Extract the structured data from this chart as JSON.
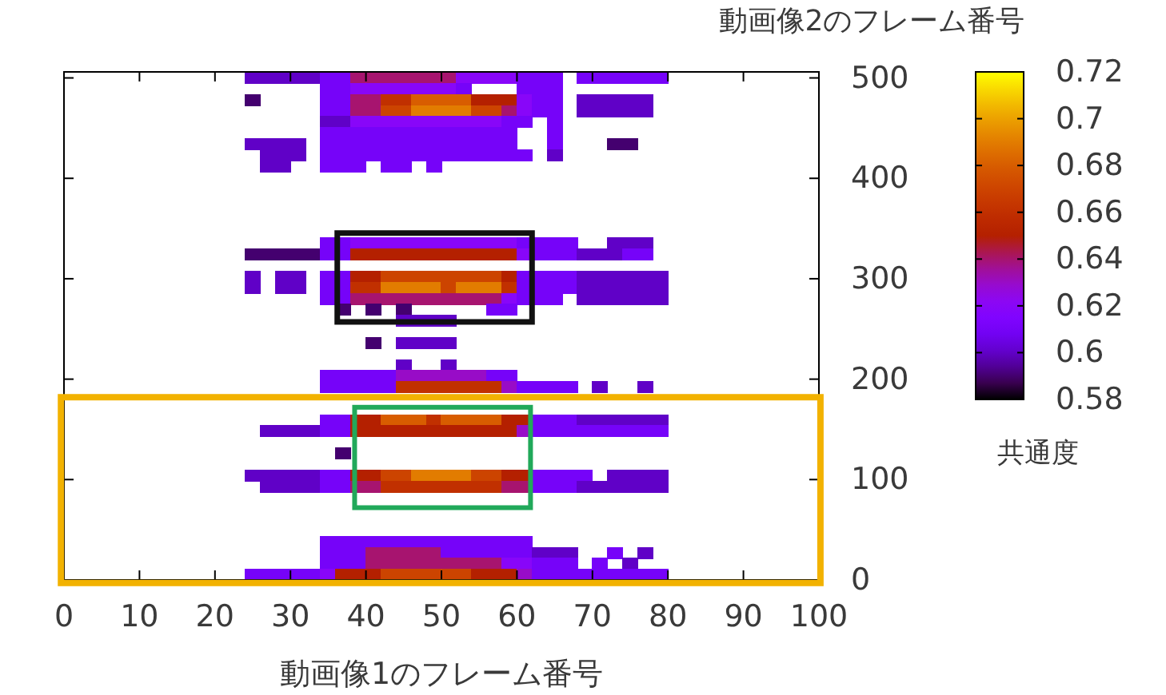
{
  "chart_data": {
    "type": "scatter",
    "marker": "square",
    "xlabel": "動画像1のフレーム番号",
    "ylabel": "動画像2のフレーム番号",
    "clabel": "共通度",
    "xlim": [
      0,
      100
    ],
    "xticks": [
      0,
      10,
      20,
      30,
      40,
      50,
      60,
      70,
      80,
      90,
      100
    ],
    "ylim": [
      0,
      506
    ],
    "yticks": [
      0,
      100,
      200,
      300,
      400,
      500
    ],
    "clim": [
      0.58,
      0.72
    ],
    "cticks": [
      0.58,
      0.6,
      0.62,
      0.64,
      0.66,
      0.68,
      0.7,
      0.72
    ],
    "series": [
      {
        "x": [
          25,
          27,
          29,
          31,
          33,
          35,
          37,
          39,
          41,
          43,
          45,
          47,
          49,
          51,
          53,
          55,
          57,
          59,
          61,
          63,
          65,
          69,
          71,
          73,
          75,
          77,
          79
        ],
        "values": [
          500,
          500,
          500,
          500,
          500,
          500,
          500,
          500,
          500,
          500,
          500,
          500,
          500,
          500,
          500,
          500,
          500,
          500,
          500,
          500,
          500,
          500,
          500,
          500,
          500,
          500,
          500
        ],
        "cvalues": [
          0.6,
          0.6,
          0.6,
          0.6,
          0.6,
          0.61,
          0.61,
          0.64,
          0.64,
          0.64,
          0.64,
          0.64,
          0.64,
          0.64,
          0.62,
          0.62,
          0.62,
          0.62,
          0.61,
          0.61,
          0.61,
          0.61,
          0.61,
          0.61,
          0.61,
          0.61,
          0.61
        ],
        "colors": [
          "#6001c7",
          "#6001c7",
          "#6001c7",
          "#6001c7",
          "#6001c7",
          "#7603f9",
          "#7603f9",
          "#a7146f",
          "#a7146f",
          "#a7146f",
          "#a7146f",
          "#a7146f",
          "#a7146f",
          "#a7146f",
          "#8806f9",
          "#8806f9",
          "#8806f9",
          "#8806f9",
          "#7603f9",
          "#7603f9",
          "#7603f9",
          "#7603f9",
          "#7603f9",
          "#7603f9",
          "#7603f9",
          "#7603f9",
          "#7603f9"
        ]
      },
      {
        "x": [
          35,
          37,
          39,
          41,
          43,
          45,
          47,
          49,
          51,
          53,
          61,
          63,
          65
        ],
        "values": [
          489,
          489,
          489,
          489,
          489,
          489,
          489,
          489,
          489,
          489,
          489,
          489,
          489
        ],
        "cvalues": [
          0.61,
          0.61,
          0.62,
          0.62,
          0.62,
          0.62,
          0.62,
          0.62,
          0.62,
          0.61,
          0.61,
          0.61,
          0.61
        ],
        "colors": [
          "#7603f9",
          "#7603f9",
          "#8806f9",
          "#8806f9",
          "#8806f9",
          "#8806f9",
          "#8806f9",
          "#8806f9",
          "#8806f9",
          "#7603f9",
          "#7603f9",
          "#7603f9",
          "#7603f9"
        ]
      },
      {
        "x": [
          25,
          35,
          37,
          39,
          41,
          43,
          45,
          47,
          49,
          51,
          53,
          55,
          57,
          59,
          61,
          63,
          65,
          69,
          71,
          73,
          75,
          77
        ],
        "values": [
          478,
          478,
          478,
          478,
          478,
          478,
          478,
          478,
          478,
          478,
          478,
          478,
          478,
          478,
          478,
          478,
          478,
          478,
          478,
          478,
          478,
          478
        ],
        "cvalues": [
          0.59,
          0.61,
          0.61,
          0.64,
          0.64,
          0.66,
          0.66,
          0.68,
          0.68,
          0.68,
          0.68,
          0.65,
          0.65,
          0.65,
          0.62,
          0.61,
          0.61,
          0.6,
          0.6,
          0.6,
          0.6,
          0.6
        ],
        "colors": [
          "#44006f",
          "#7603f9",
          "#7603f9",
          "#a7146f",
          "#a7146f",
          "#c13000",
          "#c13000",
          "#d85d00",
          "#d85d00",
          "#d85d00",
          "#d85d00",
          "#b42000",
          "#b42000",
          "#b42000",
          "#8806f9",
          "#7603f9",
          "#7603f9",
          "#6001c7",
          "#6001c7",
          "#6001c7",
          "#6001c7",
          "#6001c7"
        ]
      },
      {
        "x": [
          35,
          37,
          39,
          41,
          43,
          45,
          47,
          49,
          51,
          53,
          55,
          57,
          59,
          61,
          63,
          65,
          69,
          71,
          73,
          75,
          77
        ],
        "values": [
          467,
          467,
          467,
          467,
          467,
          467,
          467,
          467,
          467,
          467,
          467,
          467,
          467,
          467,
          467,
          467,
          467,
          467,
          467,
          467,
          467
        ],
        "cvalues": [
          0.61,
          0.61,
          0.64,
          0.64,
          0.67,
          0.67,
          0.69,
          0.69,
          0.69,
          0.69,
          0.67,
          0.67,
          0.64,
          0.62,
          0.61,
          0.61,
          0.6,
          0.6,
          0.6,
          0.6,
          0.6
        ],
        "colors": [
          "#7603f9",
          "#7603f9",
          "#a7146f",
          "#a7146f",
          "#cc4400",
          "#cc4400",
          "#e27c00",
          "#e27c00",
          "#e27c00",
          "#e27c00",
          "#cc4400",
          "#cc4400",
          "#a7146f",
          "#8806f9",
          "#7603f9",
          "#7603f9",
          "#6001c7",
          "#6001c7",
          "#6001c7",
          "#6001c7",
          "#6001c7"
        ]
      },
      {
        "x": [
          35,
          37,
          39,
          41,
          43,
          45,
          47,
          49,
          51,
          53,
          55,
          57,
          59,
          61,
          65
        ],
        "values": [
          456,
          456,
          456,
          456,
          456,
          456,
          456,
          456,
          456,
          456,
          456,
          456,
          456,
          456,
          456
        ],
        "cvalues": [
          0.6,
          0.6,
          0.62,
          0.62,
          0.62,
          0.62,
          0.62,
          0.62,
          0.62,
          0.62,
          0.62,
          0.62,
          0.61,
          0.61,
          0.61
        ],
        "colors": [
          "#6001c7",
          "#6001c7",
          "#8806f9",
          "#8806f9",
          "#8806f9",
          "#8806f9",
          "#8806f9",
          "#8806f9",
          "#8806f9",
          "#8806f9",
          "#8806f9",
          "#8806f9",
          "#7603f9",
          "#7603f9",
          "#7603f9"
        ]
      },
      {
        "x": [
          35,
          37,
          39,
          41,
          43,
          45,
          47,
          49,
          51,
          53,
          55,
          57,
          59,
          65
        ],
        "values": [
          445,
          445,
          445,
          445,
          445,
          445,
          445,
          445,
          445,
          445,
          445,
          445,
          445,
          445
        ],
        "cvalues": [
          0.61,
          0.61,
          0.61,
          0.61,
          0.61,
          0.61,
          0.61,
          0.61,
          0.61,
          0.61,
          0.61,
          0.61,
          0.61,
          0.61
        ],
        "colors": [
          "#7603f9",
          "#7603f9",
          "#7603f9",
          "#7603f9",
          "#7603f9",
          "#7603f9",
          "#7603f9",
          "#7603f9",
          "#7603f9",
          "#7603f9",
          "#7603f9",
          "#7603f9",
          "#7603f9",
          "#7603f9"
        ]
      },
      {
        "x": [
          25,
          27,
          29,
          31,
          35,
          37,
          39,
          41,
          43,
          45,
          47,
          49,
          51,
          53,
          55,
          57,
          59,
          65,
          73,
          75
        ],
        "values": [
          434,
          434,
          434,
          434,
          434,
          434,
          434,
          434,
          434,
          434,
          434,
          434,
          434,
          434,
          434,
          434,
          434,
          434,
          434,
          434
        ],
        "cvalues": [
          0.6,
          0.6,
          0.6,
          0.6,
          0.61,
          0.61,
          0.61,
          0.61,
          0.61,
          0.61,
          0.61,
          0.61,
          0.61,
          0.61,
          0.61,
          0.61,
          0.61,
          0.61,
          0.59,
          0.59
        ],
        "colors": [
          "#6001c7",
          "#6001c7",
          "#6001c7",
          "#6001c7",
          "#7603f9",
          "#7603f9",
          "#7603f9",
          "#7603f9",
          "#7603f9",
          "#7603f9",
          "#7603f9",
          "#7603f9",
          "#7603f9",
          "#7603f9",
          "#7603f9",
          "#7603f9",
          "#7603f9",
          "#7603f9",
          "#44006f",
          "#44006f"
        ]
      },
      {
        "x": [
          27,
          29,
          31,
          35,
          37,
          39,
          41,
          43,
          45,
          47,
          49,
          51,
          53,
          55,
          57,
          59,
          61,
          65
        ],
        "values": [
          423,
          423,
          423,
          423,
          423,
          423,
          423,
          423,
          423,
          423,
          423,
          423,
          423,
          423,
          423,
          423,
          423,
          423
        ],
        "cvalues": [
          0.6,
          0.6,
          0.6,
          0.61,
          0.61,
          0.61,
          0.61,
          0.61,
          0.61,
          0.61,
          0.61,
          0.61,
          0.61,
          0.61,
          0.61,
          0.61,
          0.61,
          0.6
        ],
        "colors": [
          "#6001c7",
          "#6001c7",
          "#6001c7",
          "#7603f9",
          "#7603f9",
          "#7603f9",
          "#7603f9",
          "#7603f9",
          "#7603f9",
          "#7603f9",
          "#7603f9",
          "#7603f9",
          "#7603f9",
          "#7603f9",
          "#7603f9",
          "#7603f9",
          "#7603f9",
          "#6001c7"
        ]
      },
      {
        "x": [
          27,
          29,
          35,
          37,
          39,
          43,
          45,
          49
        ],
        "values": [
          412,
          412,
          412,
          412,
          412,
          412,
          412,
          412
        ],
        "cvalues": [
          0.6,
          0.6,
          0.61,
          0.61,
          0.61,
          0.61,
          0.61,
          0.61
        ],
        "colors": [
          "#6001c7",
          "#6001c7",
          "#7603f9",
          "#7603f9",
          "#7603f9",
          "#7603f9",
          "#7603f9",
          "#7603f9"
        ]
      },
      {
        "x": [
          35,
          37,
          39,
          41,
          43,
          45,
          47,
          49,
          51,
          53,
          55,
          57,
          59,
          61,
          63,
          65,
          67,
          73,
          75,
          77
        ],
        "values": [
          335,
          335,
          335,
          335,
          335,
          335,
          335,
          335,
          335,
          335,
          335,
          335,
          335,
          335,
          335,
          335,
          335,
          335,
          335,
          335
        ],
        "cvalues": [
          0.61,
          0.61,
          0.62,
          0.62,
          0.62,
          0.62,
          0.62,
          0.62,
          0.62,
          0.62,
          0.62,
          0.62,
          0.62,
          0.61,
          0.61,
          0.61,
          0.61,
          0.6,
          0.6,
          0.6
        ],
        "colors": [
          "#7603f9",
          "#7603f9",
          "#8806f9",
          "#8806f9",
          "#8806f9",
          "#8806f9",
          "#8806f9",
          "#8806f9",
          "#8806f9",
          "#8806f9",
          "#8806f9",
          "#8806f9",
          "#8806f9",
          "#7603f9",
          "#7603f9",
          "#7603f9",
          "#7603f9",
          "#6001c7",
          "#6001c7",
          "#6001c7"
        ]
      },
      {
        "x": [
          25,
          27,
          29,
          31,
          33,
          35,
          37,
          39,
          41,
          43,
          45,
          47,
          49,
          51,
          53,
          55,
          57,
          59,
          61,
          63,
          65,
          67,
          69,
          71,
          73,
          75,
          77
        ],
        "values": [
          324,
          324,
          324,
          324,
          324,
          324,
          324,
          324,
          324,
          324,
          324,
          324,
          324,
          324,
          324,
          324,
          324,
          324,
          324,
          324,
          324,
          324,
          324,
          324,
          324,
          324,
          324
        ],
        "cvalues": [
          0.59,
          0.59,
          0.59,
          0.59,
          0.59,
          0.61,
          0.61,
          0.65,
          0.65,
          0.65,
          0.65,
          0.65,
          0.65,
          0.65,
          0.65,
          0.65,
          0.65,
          0.65,
          0.62,
          0.61,
          0.61,
          0.61,
          0.6,
          0.6,
          0.6,
          0.61,
          0.61
        ],
        "colors": [
          "#44006f",
          "#44006f",
          "#44006f",
          "#44006f",
          "#44006f",
          "#7603f9",
          "#7603f9",
          "#b42000",
          "#b42000",
          "#b42000",
          "#b42000",
          "#b42000",
          "#b42000",
          "#b42000",
          "#b42000",
          "#b42000",
          "#b42000",
          "#b42000",
          "#8806f9",
          "#7603f9",
          "#7603f9",
          "#7603f9",
          "#6001c7",
          "#6001c7",
          "#6001c7",
          "#7603f9",
          "#7603f9"
        ]
      },
      {
        "x": [
          25,
          29,
          31,
          35,
          37,
          39,
          41,
          43,
          45,
          47,
          49,
          51,
          53,
          55,
          57,
          59,
          61,
          63,
          65,
          67,
          69,
          71,
          73,
          75,
          77,
          79
        ],
        "values": [
          302,
          302,
          302,
          302,
          302,
          302,
          302,
          302,
          302,
          302,
          302,
          302,
          302,
          302,
          302,
          302,
          302,
          302,
          302,
          302,
          302,
          302,
          302,
          302,
          302,
          302
        ],
        "cvalues": [
          0.6,
          0.6,
          0.6,
          0.61,
          0.61,
          0.65,
          0.65,
          0.67,
          0.67,
          0.67,
          0.67,
          0.67,
          0.67,
          0.67,
          0.67,
          0.65,
          0.61,
          0.61,
          0.61,
          0.61,
          0.6,
          0.6,
          0.6,
          0.6,
          0.6,
          0.6
        ],
        "colors": [
          "#6001c7",
          "#6001c7",
          "#6001c7",
          "#7603f9",
          "#7603f9",
          "#b42000",
          "#b42000",
          "#cc4400",
          "#cc4400",
          "#cc4400",
          "#cc4400",
          "#cc4400",
          "#cc4400",
          "#cc4400",
          "#cc4400",
          "#b42000",
          "#7603f9",
          "#7603f9",
          "#7603f9",
          "#7603f9",
          "#6001c7",
          "#6001c7",
          "#6001c7",
          "#6001c7",
          "#6001c7",
          "#6001c7"
        ]
      },
      {
        "x": [
          25,
          29,
          31,
          35,
          37,
          39,
          41,
          43,
          45,
          47,
          49,
          51,
          53,
          55,
          57,
          59,
          61,
          63,
          65,
          67,
          69,
          71,
          73,
          75,
          77,
          79
        ],
        "values": [
          291,
          291,
          291,
          291,
          291,
          291,
          291,
          291,
          291,
          291,
          291,
          291,
          291,
          291,
          291,
          291,
          291,
          291,
          291,
          291,
          291,
          291,
          291,
          291,
          291,
          291
        ],
        "cvalues": [
          0.6,
          0.6,
          0.6,
          0.61,
          0.61,
          0.66,
          0.66,
          0.69,
          0.69,
          0.69,
          0.69,
          0.67,
          0.69,
          0.69,
          0.69,
          0.66,
          0.61,
          0.61,
          0.61,
          0.61,
          0.6,
          0.6,
          0.6,
          0.6,
          0.6,
          0.6
        ],
        "colors": [
          "#6001c7",
          "#6001c7",
          "#6001c7",
          "#7603f9",
          "#7603f9",
          "#c13000",
          "#c13000",
          "#e27c00",
          "#e27c00",
          "#e27c00",
          "#e27c00",
          "#cc4400",
          "#e27c00",
          "#e27c00",
          "#e27c00",
          "#c13000",
          "#7603f9",
          "#7603f9",
          "#7603f9",
          "#7603f9",
          "#6001c7",
          "#6001c7",
          "#6001c7",
          "#6001c7",
          "#6001c7",
          "#6001c7"
        ]
      },
      {
        "x": [
          35,
          37,
          39,
          41,
          43,
          45,
          47,
          49,
          51,
          53,
          55,
          57,
          59,
          61,
          63,
          65,
          69,
          71,
          73,
          75,
          77,
          79
        ],
        "values": [
          280,
          280,
          280,
          280,
          280,
          280,
          280,
          280,
          280,
          280,
          280,
          280,
          280,
          280,
          280,
          280,
          280,
          280,
          280,
          280,
          280,
          280
        ],
        "cvalues": [
          0.61,
          0.61,
          0.64,
          0.64,
          0.64,
          0.64,
          0.64,
          0.64,
          0.64,
          0.64,
          0.64,
          0.64,
          0.62,
          0.61,
          0.61,
          0.61,
          0.6,
          0.6,
          0.6,
          0.6,
          0.6,
          0.6
        ],
        "colors": [
          "#7603f9",
          "#7603f9",
          "#a7146f",
          "#a7146f",
          "#a7146f",
          "#a7146f",
          "#a7146f",
          "#a7146f",
          "#a7146f",
          "#a7146f",
          "#a7146f",
          "#a7146f",
          "#8806f9",
          "#7603f9",
          "#7603f9",
          "#7603f9",
          "#6001c7",
          "#6001c7",
          "#6001c7",
          "#6001c7",
          "#6001c7",
          "#6001c7"
        ]
      },
      {
        "x": [
          37,
          41,
          45,
          57,
          59
        ],
        "values": [
          269,
          269,
          269,
          269,
          269
        ],
        "cvalues": [
          0.59,
          0.59,
          0.59,
          0.61,
          0.61
        ],
        "colors": [
          "#44006f",
          "#44006f",
          "#44006f",
          "#7603f9",
          "#7603f9"
        ]
      },
      {
        "x": [
          45,
          47,
          49,
          51
        ],
        "values": [
          258,
          258,
          258,
          258
        ],
        "cvalues": [
          0.6,
          0.6,
          0.6,
          0.6
        ],
        "colors": [
          "#6001c7",
          "#6001c7",
          "#6001c7",
          "#6001c7"
        ]
      },
      {
        "x": [
          41,
          45,
          47,
          49,
          51
        ],
        "values": [
          236,
          236,
          236,
          236,
          236
        ],
        "cvalues": [
          0.59,
          0.6,
          0.6,
          0.6,
          0.6
        ],
        "colors": [
          "#44006f",
          "#6001c7",
          "#6001c7",
          "#6001c7",
          "#6001c7"
        ]
      },
      {
        "x": [
          45,
          51
        ],
        "values": [
          214,
          214
        ],
        "cvalues": [
          0.6,
          0.6
        ],
        "colors": [
          "#6001c7",
          "#6001c7"
        ]
      },
      {
        "x": [
          35,
          37,
          39,
          41,
          43,
          45,
          47,
          49,
          51,
          53,
          55,
          57,
          59
        ],
        "values": [
          203,
          203,
          203,
          203,
          203,
          203,
          203,
          203,
          203,
          203,
          203,
          203,
          203
        ],
        "cvalues": [
          0.61,
          0.61,
          0.61,
          0.61,
          0.61,
          0.63,
          0.63,
          0.63,
          0.63,
          0.63,
          0.63,
          0.61,
          0.61
        ],
        "colors": [
          "#7603f9",
          "#7603f9",
          "#7603f9",
          "#7603f9",
          "#7603f9",
          "#980cc7",
          "#980cc7",
          "#980cc7",
          "#980cc7",
          "#980cc7",
          "#980cc7",
          "#7603f9",
          "#7603f9"
        ]
      },
      {
        "x": [
          35,
          37,
          39,
          41,
          43,
          45,
          47,
          49,
          51,
          53,
          55,
          57,
          59,
          61,
          63,
          65,
          67,
          71,
          77
        ],
        "values": [
          192,
          192,
          192,
          192,
          192,
          192,
          192,
          192,
          192,
          192,
          192,
          192,
          192,
          192,
          192,
          192,
          192,
          192,
          192
        ],
        "cvalues": [
          0.61,
          0.61,
          0.61,
          0.61,
          0.61,
          0.66,
          0.66,
          0.66,
          0.66,
          0.66,
          0.66,
          0.66,
          0.63,
          0.61,
          0.61,
          0.61,
          0.61,
          0.6,
          0.6
        ],
        "colors": [
          "#7603f9",
          "#7603f9",
          "#7603f9",
          "#7603f9",
          "#7603f9",
          "#c13000",
          "#c13000",
          "#c13000",
          "#c13000",
          "#c13000",
          "#c13000",
          "#c13000",
          "#980cc7",
          "#7603f9",
          "#7603f9",
          "#7603f9",
          "#7603f9",
          "#6001c7",
          "#6001c7"
        ]
      },
      {
        "x": [
          35,
          37,
          39,
          41,
          43,
          45,
          47,
          49,
          51,
          53,
          55,
          57,
          59,
          61,
          63,
          65,
          67,
          69,
          71,
          73,
          75,
          77,
          79
        ],
        "values": [
          159,
          159,
          159,
          159,
          159,
          159,
          159,
          159,
          159,
          159,
          159,
          159,
          159,
          159,
          159,
          159,
          159,
          159,
          159,
          159,
          159,
          159,
          159
        ],
        "cvalues": [
          0.61,
          0.61,
          0.65,
          0.65,
          0.68,
          0.68,
          0.68,
          0.66,
          0.68,
          0.68,
          0.68,
          0.68,
          0.65,
          0.65,
          0.61,
          0.61,
          0.61,
          0.6,
          0.6,
          0.6,
          0.6,
          0.6,
          0.6
        ],
        "colors": [
          "#7603f9",
          "#7603f9",
          "#b42000",
          "#b42000",
          "#d85d00",
          "#d85d00",
          "#d85d00",
          "#c13000",
          "#d85d00",
          "#d85d00",
          "#d85d00",
          "#d85d00",
          "#b42000",
          "#b42000",
          "#7603f9",
          "#7603f9",
          "#7603f9",
          "#6001c7",
          "#6001c7",
          "#6001c7",
          "#6001c7",
          "#6001c7",
          "#6001c7"
        ]
      },
      {
        "x": [
          27,
          29,
          31,
          33,
          35,
          37,
          39,
          41,
          43,
          45,
          47,
          49,
          51,
          53,
          55,
          57,
          59,
          61,
          63,
          65,
          67,
          69,
          71,
          73,
          75,
          77,
          79
        ],
        "values": [
          148,
          148,
          148,
          148,
          148,
          148,
          148,
          148,
          148,
          148,
          148,
          148,
          148,
          148,
          148,
          148,
          148,
          148,
          148,
          148,
          148,
          148,
          148,
          148,
          148,
          148,
          148
        ],
        "cvalues": [
          0.6,
          0.6,
          0.6,
          0.6,
          0.61,
          0.61,
          0.65,
          0.65,
          0.65,
          0.65,
          0.65,
          0.65,
          0.65,
          0.65,
          0.65,
          0.65,
          0.65,
          0.63,
          0.61,
          0.61,
          0.61,
          0.61,
          0.61,
          0.61,
          0.61,
          0.61,
          0.61
        ],
        "colors": [
          "#6001c7",
          "#6001c7",
          "#6001c7",
          "#6001c7",
          "#7603f9",
          "#7603f9",
          "#b42000",
          "#b42000",
          "#b42000",
          "#b42000",
          "#b42000",
          "#b42000",
          "#b42000",
          "#b42000",
          "#b42000",
          "#b42000",
          "#b42000",
          "#980cc7",
          "#7603f9",
          "#7603f9",
          "#7603f9",
          "#7603f9",
          "#7603f9",
          "#7603f9",
          "#7603f9",
          "#7603f9",
          "#7603f9"
        ]
      },
      {
        "x": [
          37
        ],
        "values": [
          126
        ],
        "cvalues": [
          0.59
        ],
        "colors": [
          "#44006f"
        ]
      },
      {
        "x": [
          25,
          27,
          29,
          31,
          33,
          35,
          37,
          39,
          41,
          43,
          45,
          47,
          49,
          51,
          53,
          55,
          57,
          59,
          61,
          63,
          65,
          67,
          69,
          73,
          75,
          77,
          79
        ],
        "values": [
          104,
          104,
          104,
          104,
          104,
          104,
          104,
          104,
          104,
          104,
          104,
          104,
          104,
          104,
          104,
          104,
          104,
          104,
          104,
          104,
          104,
          104,
          104,
          104,
          104,
          104,
          104
        ],
        "cvalues": [
          0.6,
          0.6,
          0.6,
          0.6,
          0.6,
          0.61,
          0.61,
          0.65,
          0.65,
          0.67,
          0.67,
          0.69,
          0.69,
          0.69,
          0.69,
          0.67,
          0.67,
          0.65,
          0.65,
          0.61,
          0.61,
          0.61,
          0.61,
          0.6,
          0.6,
          0.6,
          0.6
        ],
        "colors": [
          "#6001c7",
          "#6001c7",
          "#6001c7",
          "#6001c7",
          "#6001c7",
          "#7603f9",
          "#7603f9",
          "#b42000",
          "#b42000",
          "#cc4400",
          "#cc4400",
          "#e27c00",
          "#e27c00",
          "#e27c00",
          "#e27c00",
          "#cc4400",
          "#cc4400",
          "#b42000",
          "#b42000",
          "#7603f9",
          "#7603f9",
          "#7603f9",
          "#7603f9",
          "#6001c7",
          "#6001c7",
          "#6001c7",
          "#6001c7"
        ]
      },
      {
        "x": [
          27,
          29,
          31,
          33,
          35,
          37,
          39,
          41,
          43,
          45,
          47,
          49,
          51,
          53,
          55,
          57,
          59,
          61,
          63,
          65,
          67,
          69,
          71,
          73,
          75,
          77,
          79
        ],
        "values": [
          93,
          93,
          93,
          93,
          93,
          93,
          93,
          93,
          93,
          93,
          93,
          93,
          93,
          93,
          93,
          93,
          93,
          93,
          93,
          93,
          93,
          93,
          93,
          93,
          93,
          93,
          93
        ],
        "cvalues": [
          0.6,
          0.6,
          0.6,
          0.6,
          0.61,
          0.61,
          0.64,
          0.64,
          0.66,
          0.66,
          0.66,
          0.66,
          0.66,
          0.66,
          0.66,
          0.66,
          0.64,
          0.64,
          0.61,
          0.61,
          0.61,
          0.6,
          0.6,
          0.6,
          0.6,
          0.6,
          0.6
        ],
        "colors": [
          "#6001c7",
          "#6001c7",
          "#6001c7",
          "#6001c7",
          "#7603f9",
          "#7603f9",
          "#a7146f",
          "#a7146f",
          "#c13000",
          "#c13000",
          "#c13000",
          "#c13000",
          "#c13000",
          "#c13000",
          "#c13000",
          "#c13000",
          "#a7146f",
          "#a7146f",
          "#7603f9",
          "#7603f9",
          "#7603f9",
          "#6001c7",
          "#6001c7",
          "#6001c7",
          "#6001c7",
          "#6001c7",
          "#6001c7"
        ]
      },
      {
        "x": [
          35,
          37,
          39,
          41,
          43,
          45,
          47,
          49,
          51,
          53,
          55,
          57,
          59,
          61
        ],
        "values": [
          38,
          38,
          38,
          38,
          38,
          38,
          38,
          38,
          38,
          38,
          38,
          38,
          38,
          38
        ],
        "cvalues": [
          0.61,
          0.61,
          0.61,
          0.61,
          0.61,
          0.61,
          0.61,
          0.61,
          0.61,
          0.61,
          0.61,
          0.61,
          0.61,
          0.61
        ],
        "colors": [
          "#7603f9",
          "#7603f9",
          "#7603f9",
          "#7603f9",
          "#7603f9",
          "#7603f9",
          "#7603f9",
          "#7603f9",
          "#7603f9",
          "#7603f9",
          "#7603f9",
          "#7603f9",
          "#7603f9",
          "#7603f9"
        ]
      },
      {
        "x": [
          35,
          37,
          39,
          41,
          43,
          45,
          47,
          49,
          51,
          53,
          55,
          57,
          59,
          61,
          63,
          65,
          67,
          73,
          77
        ],
        "values": [
          27,
          27,
          27,
          27,
          27,
          27,
          27,
          27,
          27,
          27,
          27,
          27,
          27,
          27,
          27,
          27,
          27,
          27,
          27
        ],
        "cvalues": [
          0.61,
          0.61,
          0.61,
          0.64,
          0.64,
          0.64,
          0.64,
          0.64,
          0.61,
          0.61,
          0.61,
          0.61,
          0.61,
          0.61,
          0.6,
          0.6,
          0.6,
          0.61,
          0.6
        ],
        "colors": [
          "#7603f9",
          "#7603f9",
          "#7603f9",
          "#a7146f",
          "#a7146f",
          "#a7146f",
          "#a7146f",
          "#a7146f",
          "#7603f9",
          "#7603f9",
          "#7603f9",
          "#7603f9",
          "#7603f9",
          "#7603f9",
          "#6001c7",
          "#6001c7",
          "#6001c7",
          "#7603f9",
          "#6001c7"
        ]
      },
      {
        "x": [
          35,
          37,
          39,
          41,
          43,
          45,
          47,
          49,
          51,
          53,
          55,
          57,
          59,
          61,
          63,
          65,
          67,
          71,
          75
        ],
        "values": [
          16,
          16,
          16,
          16,
          16,
          16,
          16,
          16,
          16,
          16,
          16,
          16,
          16,
          16,
          16,
          16,
          16,
          16,
          16
        ],
        "cvalues": [
          0.61,
          0.61,
          0.61,
          0.64,
          0.64,
          0.64,
          0.64,
          0.64,
          0.64,
          0.64,
          0.64,
          0.64,
          0.62,
          0.62,
          0.61,
          0.61,
          0.61,
          0.61,
          0.6
        ],
        "colors": [
          "#7603f9",
          "#7603f9",
          "#7603f9",
          "#a7146f",
          "#a7146f",
          "#a7146f",
          "#a7146f",
          "#a7146f",
          "#a7146f",
          "#a7146f",
          "#a7146f",
          "#a7146f",
          "#8806f9",
          "#8806f9",
          "#7603f9",
          "#7603f9",
          "#7603f9",
          "#7603f9",
          "#6001c7"
        ]
      },
      {
        "x": [
          25,
          27,
          29,
          31,
          33,
          35,
          37,
          39,
          41,
          43,
          45,
          47,
          49,
          51,
          53,
          55,
          57,
          59,
          61,
          63,
          65,
          67,
          69,
          71,
          73,
          75,
          77,
          79
        ],
        "values": [
          5,
          5,
          5,
          5,
          5,
          5,
          5,
          5,
          5,
          5,
          5,
          5,
          5,
          5,
          5,
          5,
          5,
          5,
          5,
          5,
          5,
          5,
          5,
          5,
          5,
          5,
          5,
          5
        ],
        "cvalues": [
          0.61,
          0.61,
          0.61,
          0.61,
          0.61,
          0.62,
          0.65,
          0.65,
          0.65,
          0.67,
          0.67,
          0.67,
          0.67,
          0.67,
          0.67,
          0.65,
          0.65,
          0.65,
          0.63,
          0.61,
          0.61,
          0.61,
          0.61,
          0.61,
          0.61,
          0.61,
          0.61,
          0.61
        ],
        "colors": [
          "#7603f9",
          "#7603f9",
          "#7603f9",
          "#7603f9",
          "#7603f9",
          "#8806f9",
          "#b42000",
          "#b42000",
          "#b42000",
          "#cc4400",
          "#cc4400",
          "#cc4400",
          "#cc4400",
          "#cc4400",
          "#cc4400",
          "#b42000",
          "#b42000",
          "#b42000",
          "#980cc7",
          "#7603f9",
          "#7603f9",
          "#7603f9",
          "#7603f9",
          "#7603f9",
          "#7603f9",
          "#7603f9",
          "#7603f9",
          "#7603f9"
        ]
      }
    ]
  }
}
